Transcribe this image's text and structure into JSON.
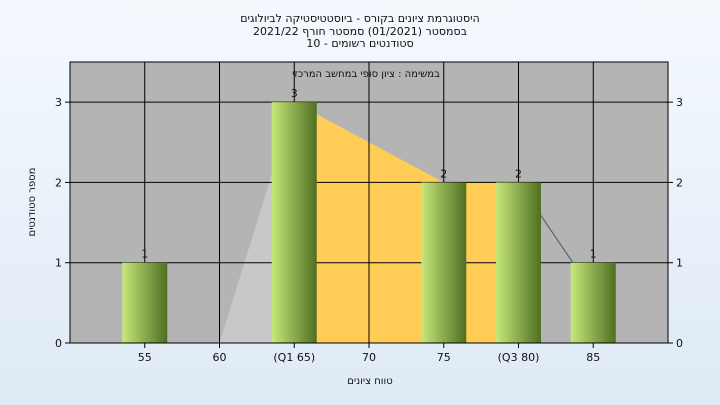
{
  "chart_data": {
    "type": "bar",
    "title_lines": [
      "היסטוגרמת ציונים בקורס - ביוסטטיסטיקה לביולוגים",
      "בסמסטר  (01/2021)  סמסטר חורף 2021/22",
      "סטודנטים רשומים - 10"
    ],
    "subtitle": "במשימה : ציון סופי במחשב המרכזי",
    "xlabel": "טווח ציונים",
    "ylabel": "מספר סטודנטים",
    "categories": [
      "55",
      "60",
      "(Q1 65)",
      "70",
      "75",
      "(Q3 80)",
      "85"
    ],
    "values": [
      1,
      0,
      3,
      0,
      2,
      2,
      1
    ],
    "bar_labels": [
      "1",
      "",
      "3",
      "",
      "2",
      "2",
      "1"
    ],
    "yticks": [
      "0",
      "1",
      "2",
      "3"
    ],
    "ylim": [
      0,
      3.5
    ],
    "grid": true,
    "colors": {
      "plot_bg": "#b4b4b4",
      "bar_light": "#c7e87a",
      "bar_dark": "#4f6e22",
      "quartile_area": "#ffcc55",
      "outer_area": "#c8c8c8"
    }
  }
}
